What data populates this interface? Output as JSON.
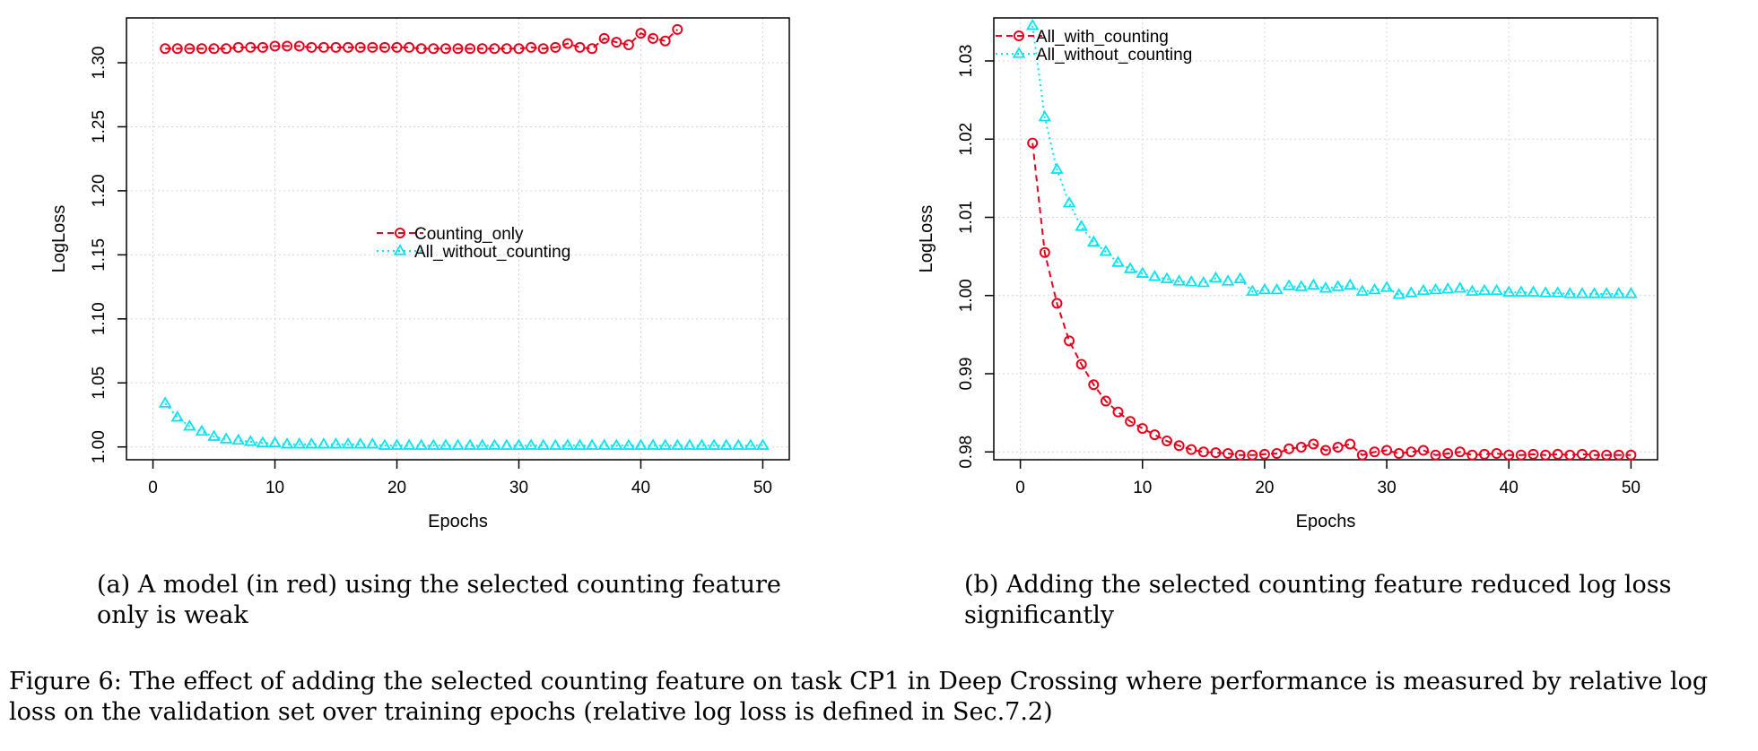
{
  "captions": {
    "a": "(a) A model (in red) using the selected counting feature only is weak",
    "b": "(b) Adding the selected counting feature reduced log loss significantly",
    "figure": "Figure 6: The effect of adding the selected counting feature on task CP1 in Deep Crossing where performance is measured by relative log loss on the validation set over training epochs (relative log loss is defined in Sec.7.2)"
  },
  "chart_data": [
    {
      "type": "line",
      "xlabel": "Epochs",
      "ylabel": "LogLoss",
      "xlim": [
        0,
        50
      ],
      "ylim": [
        0.99,
        1.335
      ],
      "xticks": [
        0,
        10,
        20,
        30,
        40,
        50
      ],
      "yticks": [
        1.0,
        1.05,
        1.1,
        1.15,
        1.2,
        1.25,
        1.3
      ],
      "ytick_labels": [
        "1.00",
        "1.05",
        "1.10",
        "1.15",
        "1.20",
        "1.25",
        "1.30"
      ],
      "grid": true,
      "legend_position": "center",
      "series": [
        {
          "name": "Counting_only",
          "color": "#e8001c",
          "marker": "circle",
          "line": "dashed",
          "x": [
            1,
            2,
            3,
            4,
            5,
            6,
            7,
            8,
            9,
            10,
            11,
            12,
            13,
            14,
            15,
            16,
            17,
            18,
            19,
            20,
            21,
            22,
            23,
            24,
            25,
            26,
            27,
            28,
            29,
            30,
            31,
            32,
            33,
            34,
            35,
            36,
            37,
            38,
            39,
            40,
            41,
            42,
            43
          ],
          "y": [
            1.311,
            1.311,
            1.311,
            1.311,
            1.311,
            1.311,
            1.312,
            1.312,
            1.312,
            1.313,
            1.313,
            1.313,
            1.312,
            1.312,
            1.312,
            1.312,
            1.312,
            1.312,
            1.312,
            1.312,
            1.312,
            1.311,
            1.311,
            1.311,
            1.311,
            1.311,
            1.311,
            1.311,
            1.311,
            1.311,
            1.312,
            1.311,
            1.312,
            1.315,
            1.312,
            1.311,
            1.319,
            1.316,
            1.314,
            1.323,
            1.319,
            1.317,
            1.326
          ]
        },
        {
          "name": "All_without_counting",
          "color": "#00e5ee",
          "marker": "triangle",
          "line": "dotted",
          "x": [
            1,
            2,
            3,
            4,
            5,
            6,
            7,
            8,
            9,
            10,
            11,
            12,
            13,
            14,
            15,
            16,
            17,
            18,
            19,
            20,
            21,
            22,
            23,
            24,
            25,
            26,
            27,
            28,
            29,
            30,
            31,
            32,
            33,
            34,
            35,
            36,
            37,
            38,
            39,
            40,
            41,
            42,
            43,
            44,
            45,
            46,
            47,
            48,
            49,
            50
          ],
          "y": [
            1.034,
            1.023,
            1.016,
            1.012,
            1.008,
            1.006,
            1.005,
            1.004,
            1.003,
            1.003,
            1.002,
            1.002,
            1.002,
            1.002,
            1.002,
            1.002,
            1.002,
            1.002,
            1.001,
            1.001,
            1.001,
            1.001,
            1.001,
            1.001,
            1.001,
            1.001,
            1.001,
            1.001,
            1.001,
            1.001,
            1.001,
            1.001,
            1.001,
            1.001,
            1.001,
            1.001,
            1.001,
            1.001,
            1.001,
            1.001,
            1.001,
            1.001,
            1.001,
            1.001,
            1.001,
            1.001,
            1.001,
            1.001,
            1.001,
            1.001
          ]
        }
      ]
    },
    {
      "type": "line",
      "xlabel": "Epochs",
      "ylabel": "LogLoss",
      "xlim": [
        0,
        50
      ],
      "ylim": [
        0.979,
        1.0355
      ],
      "xticks": [
        0,
        10,
        20,
        30,
        40,
        50
      ],
      "yticks": [
        0.98,
        0.99,
        1.0,
        1.01,
        1.02,
        1.03
      ],
      "ytick_labels": [
        "0.98",
        "0.99",
        "1.00",
        "1.01",
        "1.02",
        "1.03"
      ],
      "grid": true,
      "legend_position": "top-left",
      "series": [
        {
          "name": "All_with_counting",
          "color": "#e8001c",
          "marker": "circle",
          "line": "dashed",
          "x": [
            1,
            2,
            3,
            4,
            5,
            6,
            7,
            8,
            9,
            10,
            11,
            12,
            13,
            14,
            15,
            16,
            17,
            18,
            19,
            20,
            21,
            22,
            23,
            24,
            25,
            26,
            27,
            28,
            29,
            30,
            31,
            32,
            33,
            34,
            35,
            36,
            37,
            38,
            39,
            40,
            41,
            42,
            43,
            44,
            45,
            46,
            47,
            48,
            49,
            50
          ],
          "y": [
            1.0195,
            1.0055,
            0.999,
            0.9942,
            0.9912,
            0.9886,
            0.9865,
            0.9851,
            0.9839,
            0.983,
            0.9822,
            0.9814,
            0.9808,
            0.9803,
            0.98,
            0.9799,
            0.9798,
            0.9796,
            0.9796,
            0.9797,
            0.9798,
            0.9804,
            0.9806,
            0.981,
            0.9802,
            0.9806,
            0.981,
            0.9796,
            0.98,
            0.9802,
            0.9798,
            0.98,
            0.9802,
            0.9796,
            0.9798,
            0.98,
            0.9796,
            0.9797,
            0.9798,
            0.9796,
            0.9796,
            0.9797,
            0.9796,
            0.9797,
            0.9796,
            0.9797,
            0.9796,
            0.9796,
            0.9796,
            0.9796
          ]
        },
        {
          "name": "All_without_counting",
          "color": "#00e5ee",
          "marker": "triangle",
          "line": "dotted",
          "x": [
            1,
            2,
            3,
            4,
            5,
            6,
            7,
            8,
            9,
            10,
            11,
            12,
            13,
            14,
            15,
            16,
            17,
            18,
            19,
            20,
            21,
            22,
            23,
            24,
            25,
            26,
            27,
            28,
            29,
            30,
            31,
            32,
            33,
            34,
            35,
            36,
            37,
            38,
            39,
            40,
            41,
            42,
            43,
            44,
            45,
            46,
            47,
            48,
            49,
            50
          ],
          "y": [
            1.0345,
            1.0228,
            1.0161,
            1.0118,
            1.0088,
            1.0068,
            1.0056,
            1.0042,
            1.0034,
            1.0028,
            1.0024,
            1.0021,
            1.0018,
            1.0017,
            1.0016,
            1.0022,
            1.0018,
            1.0021,
            1.0005,
            1.0007,
            1.0007,
            1.0012,
            1.0011,
            1.0013,
            1.0009,
            1.0011,
            1.0013,
            1.0005,
            1.0007,
            1.001,
            1.0001,
            1.0003,
            1.0006,
            1.0007,
            1.0008,
            1.0009,
            1.0005,
            1.0006,
            1.0006,
            1.0004,
            1.0004,
            1.0004,
            1.0003,
            1.0003,
            1.0002,
            1.0002,
            1.0002,
            1.0002,
            1.0002,
            1.0002
          ]
        }
      ]
    }
  ]
}
